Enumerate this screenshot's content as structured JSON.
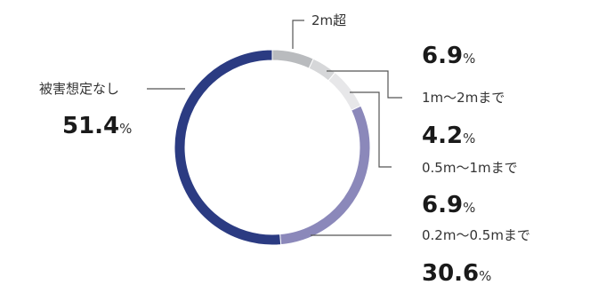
{
  "chart_data": {
    "type": "pie",
    "style": "donut",
    "percent_sign": "%",
    "slices": [
      {
        "label": "2m超",
        "value": 6.9,
        "display": "6.9",
        "color": "#b9bbbe"
      },
      {
        "label": "1m～2mまで",
        "value": 4.2,
        "display": "4.2",
        "color": "#d6d7d9"
      },
      {
        "label": "0.5m～1mまで",
        "value": 6.9,
        "display": "6.9",
        "color": "#e7e7e9"
      },
      {
        "label": "0.2m～0.5mまで",
        "value": 30.6,
        "display": "30.6",
        "color": "#8b88ba"
      },
      {
        "label": "被害想定なし",
        "value": 51.4,
        "display": "51.4",
        "color": "#2b3b82"
      }
    ]
  }
}
